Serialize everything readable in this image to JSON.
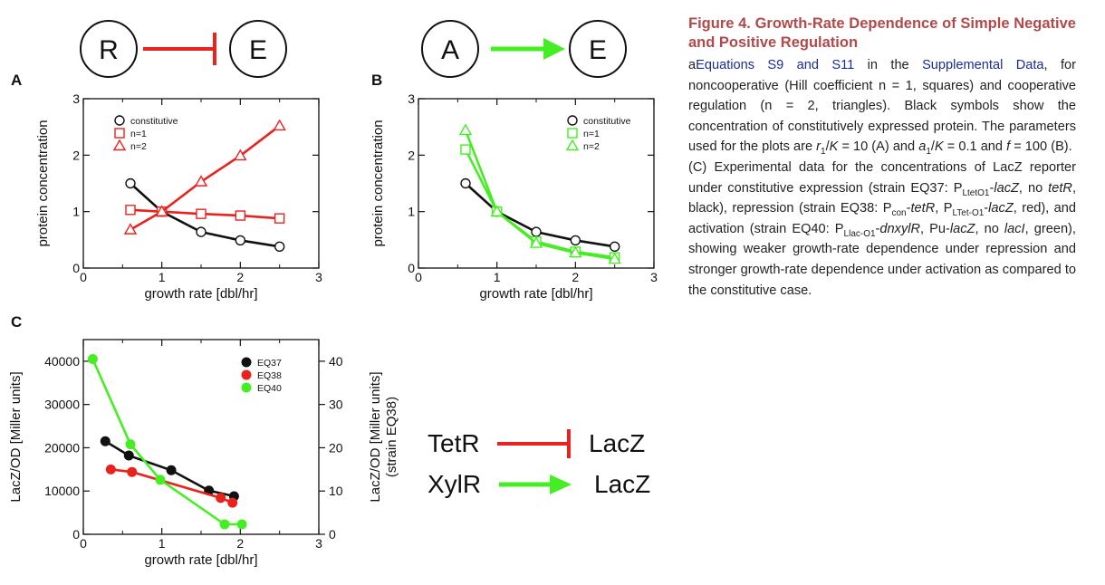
{
  "schematics": {
    "negative": {
      "left": "R",
      "right": "E"
    },
    "positive": {
      "left": "A",
      "right": "E"
    },
    "experiment": {
      "rep_left": "TetR",
      "rep_right": "LacZ",
      "act_left": "XylR",
      "act_right": "LacZ"
    }
  },
  "colors": {
    "black": "#111111",
    "red": "#e8231d",
    "green": "#44ee22",
    "title": "#b04a4a",
    "link": "#1a2f8a"
  },
  "chart_data": [
    {
      "panel": "A",
      "type": "line",
      "xlabel": "growth rate [dbl/hr]",
      "ylabel": "protein concentration",
      "xlim": [
        0,
        3
      ],
      "ylim": [
        0,
        3
      ],
      "xticks": [
        "0",
        "1",
        "2",
        "3"
      ],
      "yticks": [
        "0",
        "1",
        "2",
        "3"
      ],
      "legend_position": "top-left",
      "series": [
        {
          "name": "constitutive",
          "marker": "circle",
          "color": "#111111",
          "x": [
            0.6,
            1.0,
            1.5,
            2.0,
            2.5
          ],
          "y": [
            1.5,
            1.0,
            0.64,
            0.49,
            0.38
          ]
        },
        {
          "name": "n=1",
          "marker": "square",
          "color": "#e8231d",
          "x": [
            0.6,
            1.0,
            1.5,
            2.0,
            2.5
          ],
          "y": [
            1.03,
            1.0,
            0.96,
            0.93,
            0.88
          ]
        },
        {
          "name": "n=2",
          "marker": "triangle",
          "color": "#e8231d",
          "x": [
            0.6,
            1.0,
            1.5,
            2.0,
            2.5
          ],
          "y": [
            0.68,
            1.0,
            1.53,
            1.99,
            2.52
          ]
        }
      ]
    },
    {
      "panel": "B",
      "type": "line",
      "xlabel": "growth rate [dbl/hr]",
      "ylabel": "protein concentration",
      "xlim": [
        0,
        3
      ],
      "ylim": [
        0,
        3
      ],
      "xticks": [
        "0",
        "1",
        "2",
        "3"
      ],
      "yticks": [
        "0",
        "1",
        "2",
        "3"
      ],
      "legend_position": "top-right",
      "series": [
        {
          "name": "constitutive",
          "marker": "circle",
          "color": "#111111",
          "x": [
            0.6,
            1.0,
            1.5,
            2.0,
            2.5
          ],
          "y": [
            1.5,
            1.0,
            0.64,
            0.49,
            0.38
          ]
        },
        {
          "name": "n=1",
          "marker": "square",
          "color": "#44ee22",
          "x": [
            0.6,
            1.0,
            1.5,
            2.0,
            2.5
          ],
          "y": [
            2.1,
            1.0,
            0.47,
            0.29,
            0.19
          ]
        },
        {
          "name": "n=2",
          "marker": "triangle",
          "color": "#44ee22",
          "x": [
            0.6,
            1.0,
            1.5,
            2.0,
            2.5
          ],
          "y": [
            2.44,
            1.0,
            0.44,
            0.27,
            0.16
          ]
        }
      ]
    },
    {
      "panel": "C",
      "type": "line",
      "xlabel": "growth rate [dbl/hr]",
      "ylabel": "LacZ/OD  [Miller units]",
      "ylabel_right": "LacZ/OD  [Miller units]",
      "ylabel_right2": "(strain EQ38)",
      "xlim": [
        0,
        3
      ],
      "ylim": [
        0,
        45000
      ],
      "ylim_right": [
        0,
        45
      ],
      "xticks": [
        "0",
        "1",
        "2",
        "3"
      ],
      "yticks": [
        "0",
        "10000",
        "20000",
        "30000",
        "40000"
      ],
      "yticks_right": [
        "0",
        "10",
        "20",
        "30",
        "40"
      ],
      "legend_position": "top-right",
      "series": [
        {
          "name": "EQ37",
          "marker": "dot",
          "color": "#111111",
          "x": [
            0.28,
            0.58,
            1.12,
            1.6,
            1.92
          ],
          "y": [
            21500,
            18200,
            14800,
            10100,
            8800
          ]
        },
        {
          "name": "EQ38",
          "marker": "dot",
          "color": "#e8231d",
          "x": [
            0.35,
            0.62,
            1.75,
            1.9
          ],
          "y": [
            15000,
            14400,
            8400,
            7300
          ]
        },
        {
          "name": "EQ40",
          "marker": "dot",
          "color": "#44ee22",
          "x": [
            0.12,
            0.6,
            0.98,
            1.8,
            2.02
          ],
          "y": [
            40500,
            20800,
            12600,
            2300,
            2300
          ]
        }
      ]
    }
  ],
  "caption": {
    "title": "Figure 4. Growth-Rate Dependence of Simple Negative and Positive Regulation",
    "p1_a": "a",
    "p1_link1": "Equations S9 and S11",
    "p1_b": " in the ",
    "p1_link2": "Supplemental Data",
    "p1_c": ", for noncooperative (Hill coefficient n = 1, squares) and cooperative regulation (n = 2, triangles). Black symbols show the concentration of constitutively expressed protein. The parameters used for the plots are ",
    "p1_r": "r",
    "p1_r_sub": "1",
    "p1_d": "/",
    "p1_K1": "K",
    "p1_e": " = 10 (A) and ",
    "p1_a_sub": "1",
    "p1_f": "/",
    "p1_K2": "K",
    "p1_g": " = 0.1 and ",
    "p1_fvar": "f",
    "p1_h": " = 100 (B).",
    "p2_a": "(C) Experimental data for the concentrations of LacZ reporter under constitutive expression (strain EQ37: P",
    "p2_sub1": "LtetO1",
    "p2_b": "-",
    "p2_lacZ1": "lacZ",
    "p2_c": ", no ",
    "p2_tetR1": "tetR",
    "p2_d": ", black), repression (strain EQ38: P",
    "p2_sub2": "con",
    "p2_e": "-",
    "p2_tetR2": "tetR",
    "p2_f": ", P",
    "p2_sub3": "LTet-O1",
    "p2_g": "-",
    "p2_lacZ2": "lacZ",
    "p2_h": ", red), and activation (strain EQ40: P",
    "p2_sub4": "Llac-O1",
    "p2_i": "-",
    "p2_dnxylR": "dnxylR",
    "p2_j": ", Pu-",
    "p2_lacZ3": "lacZ",
    "p2_k": ", no ",
    "p2_lacI": "lacI",
    "p2_l": ", green), showing weaker growth-rate dependence under repression and stronger growth-rate dependence under activation as compared to the constitutive case."
  }
}
